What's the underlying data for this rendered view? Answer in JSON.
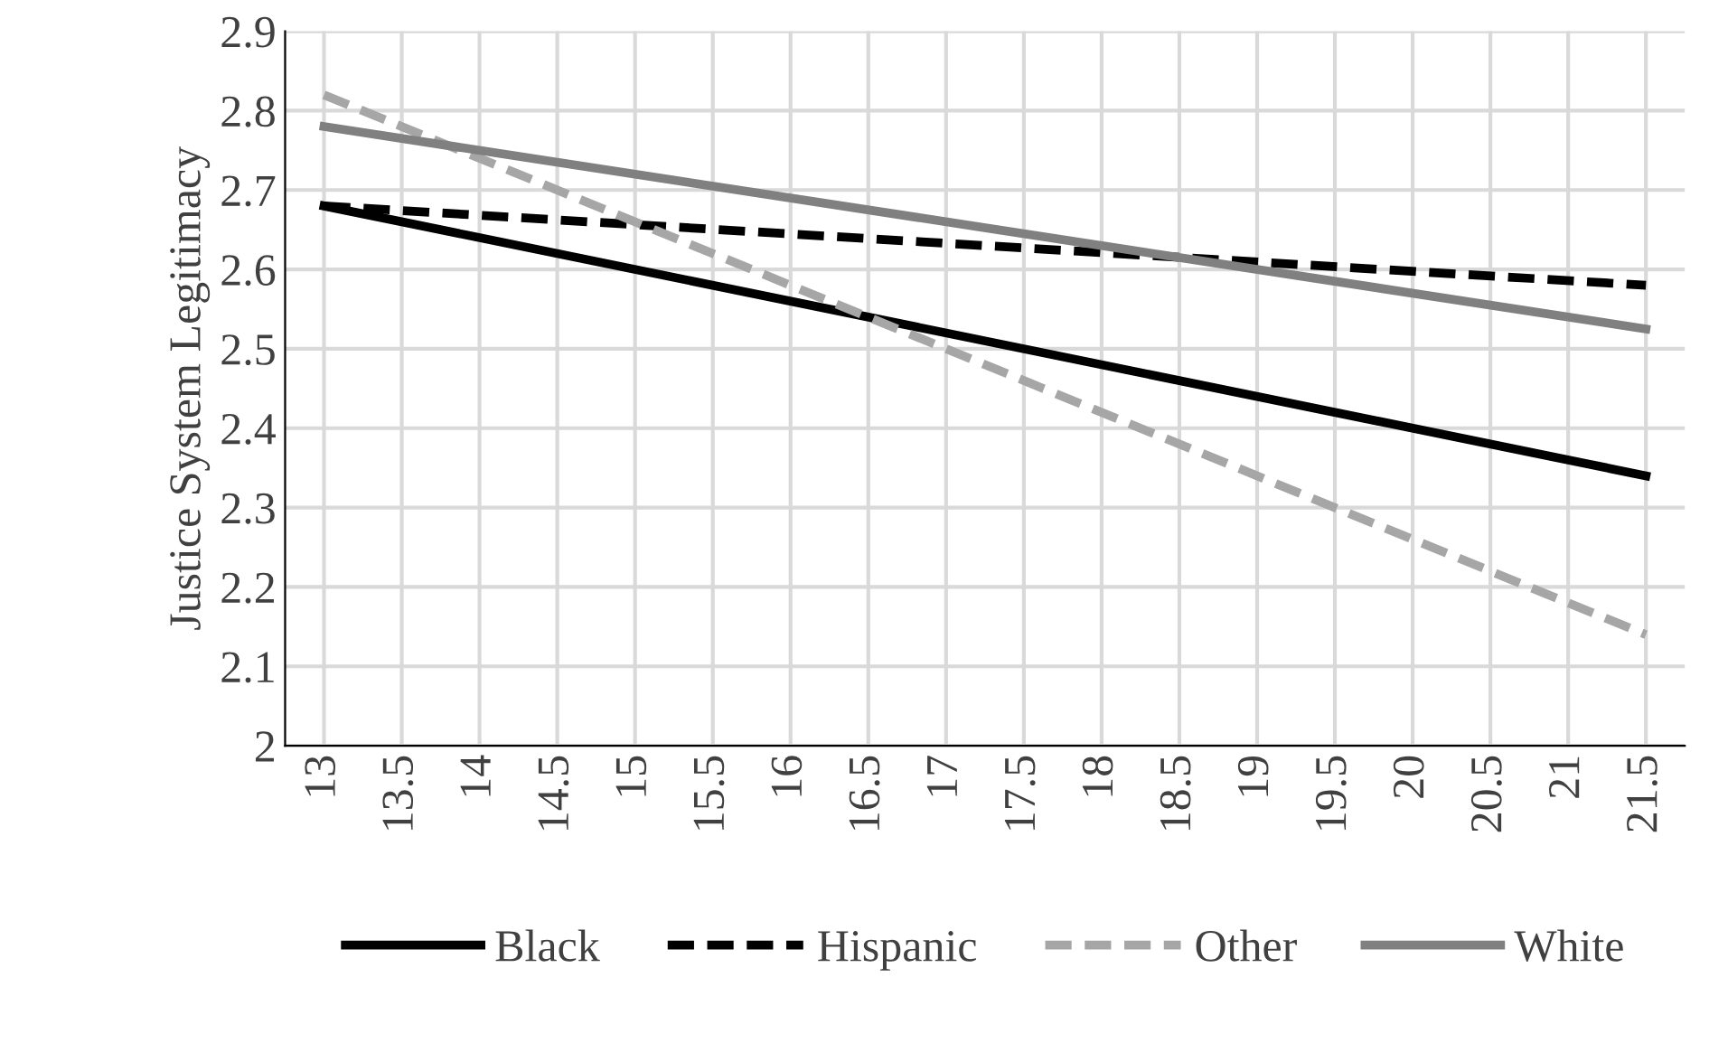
{
  "chart_data": {
    "type": "line",
    "ylabel": "Justice System Legitimacy",
    "x": [
      13,
      21.5
    ],
    "series": [
      {
        "name": "Black",
        "color": "#000000",
        "line_style": "solid",
        "values": [
          2.68,
          2.34
        ]
      },
      {
        "name": "Hispanic",
        "color": "#000000",
        "line_style": "dashed",
        "values": [
          2.68,
          2.58
        ]
      },
      {
        "name": "Other",
        "color": "#a6a6a6",
        "line_style": "dashed",
        "values": [
          2.82,
          2.14
        ]
      },
      {
        "name": "White",
        "color": "#808080",
        "line_style": "solid",
        "values": [
          2.78,
          2.525
        ]
      }
    ],
    "xlim": [
      12.75,
      21.75
    ],
    "xticks": [
      13,
      13.5,
      14,
      14.5,
      15,
      15.5,
      16,
      16.5,
      17,
      17.5,
      18,
      18.5,
      19,
      19.5,
      20,
      20.5,
      21,
      21.5
    ],
    "ylim": [
      2,
      2.9
    ],
    "yticks": [
      {
        "value": 2,
        "label": "2"
      },
      2.1,
      2.2,
      2.3,
      2.4,
      2.5,
      2.6,
      2.7,
      2.8,
      2.9
    ],
    "grid": true,
    "legend": "bottom",
    "marker": "none"
  }
}
